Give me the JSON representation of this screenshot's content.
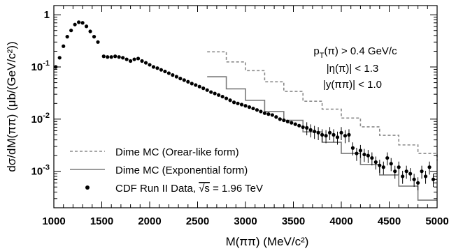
{
  "chart_data": {
    "type": "scatter",
    "title": "",
    "xlabel": "M(ππ) (MeV/c²)",
    "ylabel": "dσ/dM(ππ) (μb/(GeV/c²))",
    "xlim": [
      1000,
      5000
    ],
    "ylim": [
      0.0002,
      1.5
    ],
    "y_scale": "log",
    "grid": false,
    "legend_position": "bottom-left",
    "x_ticks": [
      1000,
      1500,
      2000,
      2500,
      3000,
      3500,
      4000,
      4500,
      5000
    ],
    "x_tick_labels": [
      "1000",
      "1500",
      "2000",
      "2500",
      "3000",
      "3500",
      "4000",
      "4500",
      "5000"
    ],
    "y_ticks": [
      0.001,
      0.01,
      0.1,
      1
    ],
    "y_tick_labels": [
      {
        "base": "10",
        "exp": "-3"
      },
      {
        "base": "10",
        "exp": "-2"
      },
      {
        "base": "10",
        "exp": "-1"
      },
      {
        "base": "1",
        "exp": ""
      }
    ],
    "annotations": [
      {
        "parts": [
          "p",
          "T",
          "(π) > 0.4 GeV/c"
        ]
      },
      {
        "text": "|η(π)| < 1.3"
      },
      {
        "text": "|y(ππ)| < 1.0"
      }
    ],
    "legend": [
      {
        "label": "Dime MC (Orear-like form)",
        "style": "dashed",
        "color": "#8a8a8a"
      },
      {
        "label": "Dime MC (Exponential form)",
        "style": "solid",
        "color": "#7a7a7a"
      },
      {
        "label_parts": [
          "CDF Run II Data, ",
          "s",
          " = 1.96 TeV"
        ],
        "style": "marker",
        "color": "#000000"
      }
    ],
    "series": [
      {
        "name": "CDF Run II Data, √s = 1.96 TeV",
        "kind": "points",
        "x": [
          1020,
          1060,
          1100,
          1140,
          1180,
          1220,
          1260,
          1300,
          1340,
          1380,
          1420,
          1460,
          1520,
          1560,
          1600,
          1640,
          1680,
          1720,
          1760,
          1800,
          1840,
          1880,
          1920,
          1960,
          2000,
          2040,
          2080,
          2120,
          2160,
          2200,
          2240,
          2280,
          2320,
          2360,
          2400,
          2440,
          2480,
          2520,
          2560,
          2600,
          2640,
          2680,
          2720,
          2760,
          2800,
          2840,
          2880,
          2920,
          2960,
          3000,
          3040,
          3080,
          3120,
          3160,
          3200,
          3240,
          3280,
          3320,
          3360,
          3400,
          3440,
          3480,
          3520,
          3560,
          3600,
          3640,
          3680,
          3720,
          3760,
          3800,
          3840,
          3880,
          3920,
          3960,
          4000,
          4040,
          4080,
          4120,
          4160,
          4200,
          4240,
          4280,
          4320,
          4360,
          4400,
          4440,
          4480,
          4520,
          4560,
          4600,
          4640,
          4680,
          4720,
          4760,
          4800,
          4840,
          4880,
          4920,
          4960
        ],
        "y": [
          0.1,
          0.15,
          0.25,
          0.38,
          0.5,
          0.65,
          0.72,
          0.7,
          0.6,
          0.48,
          0.38,
          0.3,
          0.16,
          0.155,
          0.155,
          0.16,
          0.155,
          0.15,
          0.14,
          0.13,
          0.14,
          0.145,
          0.13,
          0.12,
          0.11,
          0.1,
          0.095,
          0.088,
          0.082,
          0.076,
          0.07,
          0.065,
          0.06,
          0.056,
          0.052,
          0.048,
          0.045,
          0.042,
          0.039,
          0.036,
          0.033,
          0.031,
          0.029,
          0.027,
          0.025,
          0.023,
          0.021,
          0.02,
          0.019,
          0.018,
          0.017,
          0.016,
          0.015,
          0.014,
          0.013,
          0.0125,
          0.012,
          0.011,
          0.01,
          0.0095,
          0.009,
          0.0085,
          0.008,
          0.0075,
          0.007,
          0.0068,
          0.0062,
          0.0058,
          0.0055,
          0.005,
          0.0048,
          0.0055,
          0.005,
          0.0045,
          0.0055,
          0.0048,
          0.005,
          0.0028,
          0.0022,
          0.0025,
          0.0021,
          0.002,
          0.0018,
          0.0015,
          0.0013,
          0.0012,
          0.0018,
          0.0014,
          0.001,
          0.0012,
          0.0008,
          0.001,
          0.0009,
          0.0007,
          0.0006,
          0.001,
          0.0008,
          0.0012,
          0.0007
        ],
        "err_frac": 0.28
      },
      {
        "name": "Dime MC (Orear-like form)",
        "kind": "step",
        "style": "dashed",
        "bins": [
          2600,
          2800,
          3000,
          3200,
          3400,
          3600,
          3800,
          4000,
          4200,
          4400,
          4600,
          4800,
          5000
        ],
        "values": [
          0.195,
          0.125,
          0.085,
          0.052,
          0.034,
          0.022,
          0.0155,
          0.0105,
          0.0071,
          0.0049,
          0.0032,
          0.0022,
          0.0016
        ]
      },
      {
        "name": "Dime MC (Exponential form)",
        "kind": "step",
        "style": "solid",
        "bins": [
          2600,
          2800,
          3000,
          3200,
          3400,
          3600,
          3800,
          4000,
          4200,
          4400,
          4600,
          4800,
          5000
        ],
        "values": [
          0.065,
          0.038,
          0.023,
          0.014,
          0.0095,
          0.0057,
          0.0036,
          0.0022,
          0.00135,
          0.00085,
          0.00052,
          0.00028,
          0.00028
        ]
      }
    ]
  }
}
